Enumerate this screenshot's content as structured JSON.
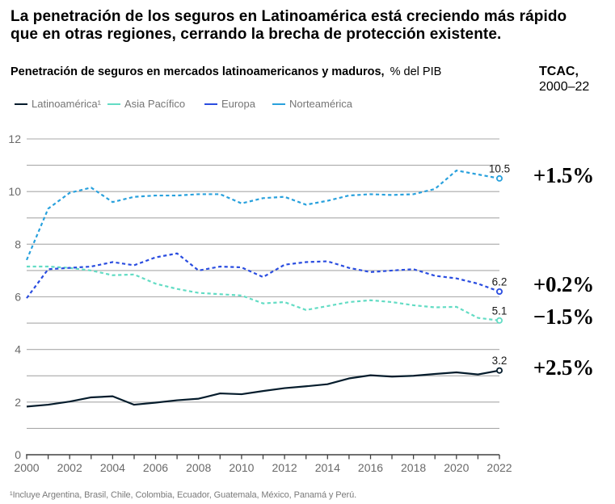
{
  "header": {
    "title_line1": "La penetración de los seguros en Latinoamérica está creciendo más rápido",
    "title_line2": "que en otras regiones, cerrando la brecha de protección existente."
  },
  "footnote": "¹Incluye Argentina, Brasil, Chile, Colombia, Ecuador, Guatemala, México, Panamá y Perú.",
  "chart_data": {
    "type": "line",
    "title": "Penetración de seguros en mercados latinoamericanos y maduros,",
    "unit": "% del PIB",
    "cagr_header": {
      "line1": "TCAC,",
      "line2": "2000–22"
    },
    "x": [
      2000,
      2001,
      2002,
      2003,
      2004,
      2005,
      2006,
      2007,
      2008,
      2009,
      2010,
      2011,
      2012,
      2013,
      2014,
      2015,
      2016,
      2017,
      2018,
      2019,
      2020,
      2021,
      2022
    ],
    "xlim": [
      2000,
      2022
    ],
    "ylim": [
      0,
      12
    ],
    "ytick_interval": 1,
    "ytick_label_interval": 2,
    "xtick_label_interval": 2,
    "grid": "horizontal",
    "legend_position": "top-left",
    "axis_colors": {
      "gridline": "#a9a9a9",
      "baseline": "#404040",
      "tick_label": "#696969"
    },
    "series": [
      {
        "name": "Latinoamérica¹",
        "color": "#051c2c",
        "style": "solid",
        "end_label": "3.2",
        "cagr": "+2.5%",
        "cagr_dy": -3,
        "values": [
          1.83,
          1.9,
          2.02,
          2.18,
          2.22,
          1.9,
          1.98,
          2.07,
          2.13,
          2.33,
          2.3,
          2.42,
          2.53,
          2.6,
          2.68,
          2.9,
          3.02,
          2.97,
          3.0,
          3.07,
          3.13,
          3.05,
          3.2
        ]
      },
      {
        "name": "Asia Pacífico",
        "color": "#63dcc4",
        "style": "dashed",
        "end_label": "5.1",
        "cagr": "−1.5%",
        "cagr_dy": -4,
        "values": [
          7.15,
          7.15,
          7.1,
          7.0,
          6.82,
          6.85,
          6.5,
          6.3,
          6.15,
          6.1,
          6.05,
          5.75,
          5.8,
          5.5,
          5.65,
          5.8,
          5.87,
          5.8,
          5.68,
          5.6,
          5.62,
          5.2,
          5.1
        ]
      },
      {
        "name": "Europa",
        "color": "#2a4de0",
        "style": "dashed",
        "end_label": "6.2",
        "cagr": "+0.2%",
        "cagr_dy": -8,
        "values": [
          5.95,
          7.05,
          7.1,
          7.15,
          7.32,
          7.2,
          7.5,
          7.65,
          7.0,
          7.15,
          7.12,
          6.75,
          7.22,
          7.32,
          7.35,
          7.1,
          6.94,
          7.0,
          7.05,
          6.8,
          6.7,
          6.5,
          6.2
        ]
      },
      {
        "name": "Norteamérica",
        "color": "#29a1dd",
        "style": "dashed",
        "end_label": "10.5",
        "cagr": "+1.5%",
        "cagr_dy": -3,
        "values": [
          7.4,
          9.35,
          9.95,
          10.15,
          9.6,
          9.8,
          9.85,
          9.85,
          9.9,
          9.9,
          9.55,
          9.75,
          9.8,
          9.5,
          9.65,
          9.85,
          9.9,
          9.87,
          9.9,
          10.1,
          10.8,
          10.65,
          10.5
        ]
      }
    ]
  }
}
